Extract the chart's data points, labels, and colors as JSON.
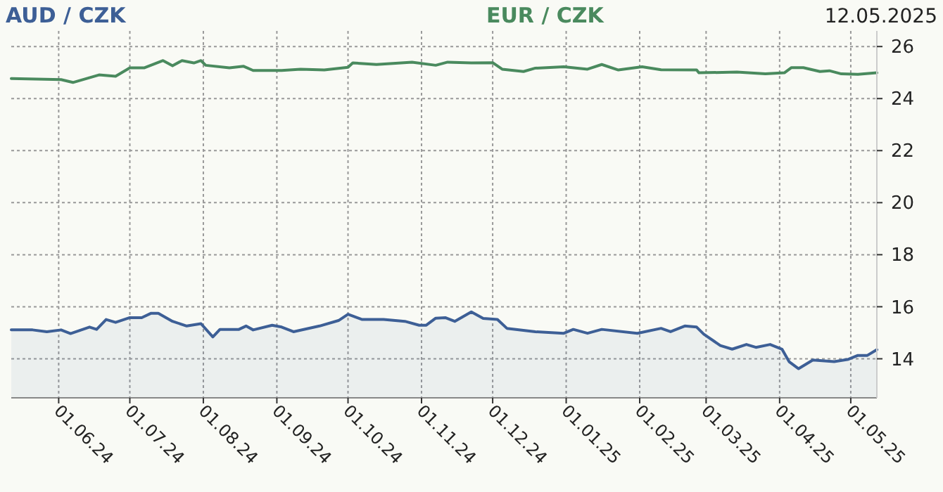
{
  "chart_data": {
    "type": "line",
    "series": [
      {
        "name": "AUD / CZK",
        "color": "#3d5f96",
        "type": "area",
        "x": [
          "2024-05-12",
          "2024-05-21",
          "2024-05-27",
          "2024-06-02",
          "2024-06-06",
          "2024-06-14",
          "2024-06-17",
          "2024-06-21",
          "2024-06-25",
          "2024-07-01",
          "2024-07-06",
          "2024-07-10",
          "2024-07-13",
          "2024-07-19",
          "2024-07-25",
          "2024-07-31",
          "2024-08-05",
          "2024-08-08",
          "2024-08-16",
          "2024-08-19",
          "2024-08-22",
          "2024-08-30",
          "2024-09-03",
          "2024-09-08",
          "2024-09-19",
          "2024-09-27",
          "2024-10-01",
          "2024-10-07",
          "2024-10-16",
          "2024-10-25",
          "2024-10-31",
          "2024-11-03",
          "2024-11-07",
          "2024-11-11",
          "2024-11-15",
          "2024-11-22",
          "2024-11-27",
          "2024-12-03",
          "2024-12-07",
          "2024-12-19",
          "2024-12-31",
          "2025-01-04",
          "2025-01-10",
          "2025-01-16",
          "2025-01-31",
          "2025-02-10",
          "2025-02-14",
          "2025-02-20",
          "2025-02-25",
          "2025-02-28",
          "2025-03-07",
          "2025-03-12",
          "2025-03-18",
          "2025-03-22",
          "2025-03-28",
          "2025-04-02",
          "2025-04-05",
          "2025-04-09",
          "2025-04-15",
          "2025-04-24",
          "2025-04-30",
          "2025-05-04",
          "2025-05-08",
          "2025-05-12"
        ],
        "values": [
          15.11,
          15.11,
          15.04,
          15.11,
          14.97,
          15.22,
          15.13,
          15.51,
          15.4,
          15.58,
          15.58,
          15.75,
          15.75,
          15.44,
          15.26,
          15.35,
          14.84,
          15.13,
          15.13,
          15.26,
          15.11,
          15.29,
          15.22,
          15.04,
          15.26,
          15.47,
          15.71,
          15.51,
          15.51,
          15.44,
          15.29,
          15.29,
          15.56,
          15.58,
          15.44,
          15.8,
          15.55,
          15.51,
          15.17,
          15.04,
          14.98,
          15.13,
          14.98,
          15.13,
          14.98,
          15.17,
          15.04,
          15.26,
          15.22,
          14.95,
          14.51,
          14.37,
          14.55,
          14.44,
          14.55,
          14.37,
          13.89,
          13.62,
          13.95,
          13.89,
          13.98,
          14.13,
          14.13,
          14.35
        ]
      },
      {
        "name": "EUR / CZK",
        "color": "#4a8a5e",
        "x": [
          "2024-05-12",
          "2024-06-02",
          "2024-06-07",
          "2024-06-18",
          "2024-06-25",
          "2024-07-01",
          "2024-07-07",
          "2024-07-15",
          "2024-07-19",
          "2024-07-23",
          "2024-07-28",
          "2024-07-31",
          "2024-08-02",
          "2024-08-12",
          "2024-08-18",
          "2024-08-22",
          "2024-09-03",
          "2024-09-11",
          "2024-09-21",
          "2024-10-01",
          "2024-10-03",
          "2024-10-13",
          "2024-10-28",
          "2024-11-07",
          "2024-11-12",
          "2024-11-22",
          "2024-12-01",
          "2024-12-05",
          "2024-12-14",
          "2024-12-19",
          "2024-12-31",
          "2025-01-10",
          "2025-01-16",
          "2025-01-23",
          "2025-02-02",
          "2025-02-10",
          "2025-02-25",
          "2025-02-26",
          "2025-03-14",
          "2025-03-26",
          "2025-04-03",
          "2025-04-06",
          "2025-04-11",
          "2025-04-18",
          "2025-04-22",
          "2025-04-27",
          "2025-05-04",
          "2025-05-12"
        ],
        "values": [
          24.77,
          24.73,
          24.62,
          24.91,
          24.86,
          25.18,
          25.18,
          25.46,
          25.26,
          25.46,
          25.37,
          25.46,
          25.28,
          25.18,
          25.24,
          25.08,
          25.08,
          25.13,
          25.1,
          25.2,
          25.37,
          25.31,
          25.4,
          25.28,
          25.4,
          25.37,
          25.38,
          25.13,
          25.04,
          25.17,
          25.22,
          25.13,
          25.31,
          25.1,
          25.22,
          25.11,
          25.1,
          24.99,
          25.02,
          24.95,
          24.99,
          25.19,
          25.19,
          25.04,
          25.07,
          24.95,
          24.93,
          24.99
        ]
      }
    ],
    "xlim": [
      "2024-05-12",
      "2025-05-12"
    ],
    "xticks": [
      {
        "value": "2024-06-01",
        "label": "01.06.24"
      },
      {
        "value": "2024-07-01",
        "label": "01.07.24"
      },
      {
        "value": "2024-08-01",
        "label": "01.08.24"
      },
      {
        "value": "2024-09-01",
        "label": "01.09.24"
      },
      {
        "value": "2024-10-01",
        "label": "01.10.24"
      },
      {
        "value": "2024-11-01",
        "label": "01.11.24"
      },
      {
        "value": "2024-12-01",
        "label": "01.12.24"
      },
      {
        "value": "2025-01-01",
        "label": "01.01.25"
      },
      {
        "value": "2025-02-01",
        "label": "01.02.25"
      },
      {
        "value": "2025-03-01",
        "label": "01.03.25"
      },
      {
        "value": "2025-04-01",
        "label": "01.04.25"
      },
      {
        "value": "2025-05-01",
        "label": "01.05.25"
      }
    ],
    "ylim": [
      12.5,
      26.6
    ],
    "yticks": [
      14,
      16,
      18,
      20,
      22,
      24,
      26
    ],
    "grid": true,
    "legend": "top",
    "marker": "none",
    "line_style": "solid",
    "annotations": [
      "12.05.2025"
    ]
  }
}
